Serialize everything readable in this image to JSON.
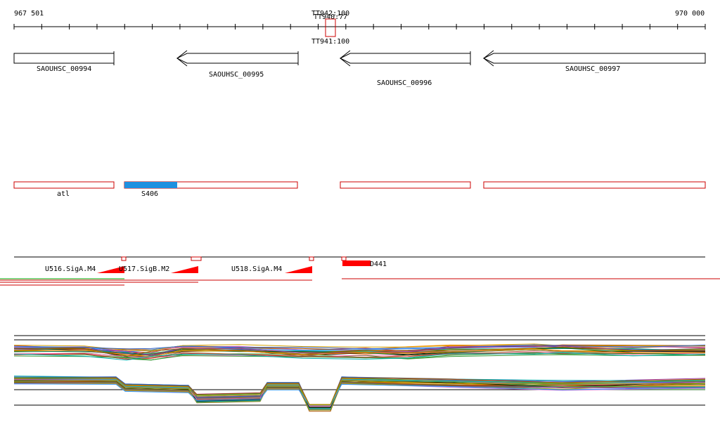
{
  "ruler": {
    "start_label": "967 501",
    "end_label": "970 000",
    "terminators": [
      {
        "top_label_a": "TT942:100",
        "top_label_b": "TT940:77",
        "bottom_label": "TT941:100"
      }
    ]
  },
  "genes": [
    {
      "label": "SAOUHSC_00994"
    },
    {
      "label": "SAOUHSC_00995"
    },
    {
      "label": "SAOUHSC_00996"
    },
    {
      "label": "SAOUHSC_00997"
    }
  ],
  "operons": [
    {
      "label": "atl",
      "color": "#ffffff"
    },
    {
      "label": "S406",
      "color": "#1e90e0"
    },
    {
      "label": "",
      "color": "#ffffff"
    },
    {
      "label": "",
      "color": "#ffffff"
    }
  ],
  "transcription_units": [
    {
      "label": "U516.SigA.M4"
    },
    {
      "label": "U517.SigB.M2"
    },
    {
      "label": "U518.SigA.M4"
    },
    {
      "label": "D441"
    }
  ],
  "colors": {
    "feature_outline": "#cc0000",
    "promoter_fill": "#ff0000",
    "gene_outline": "#000000",
    "tu_green": "#00aa00"
  }
}
